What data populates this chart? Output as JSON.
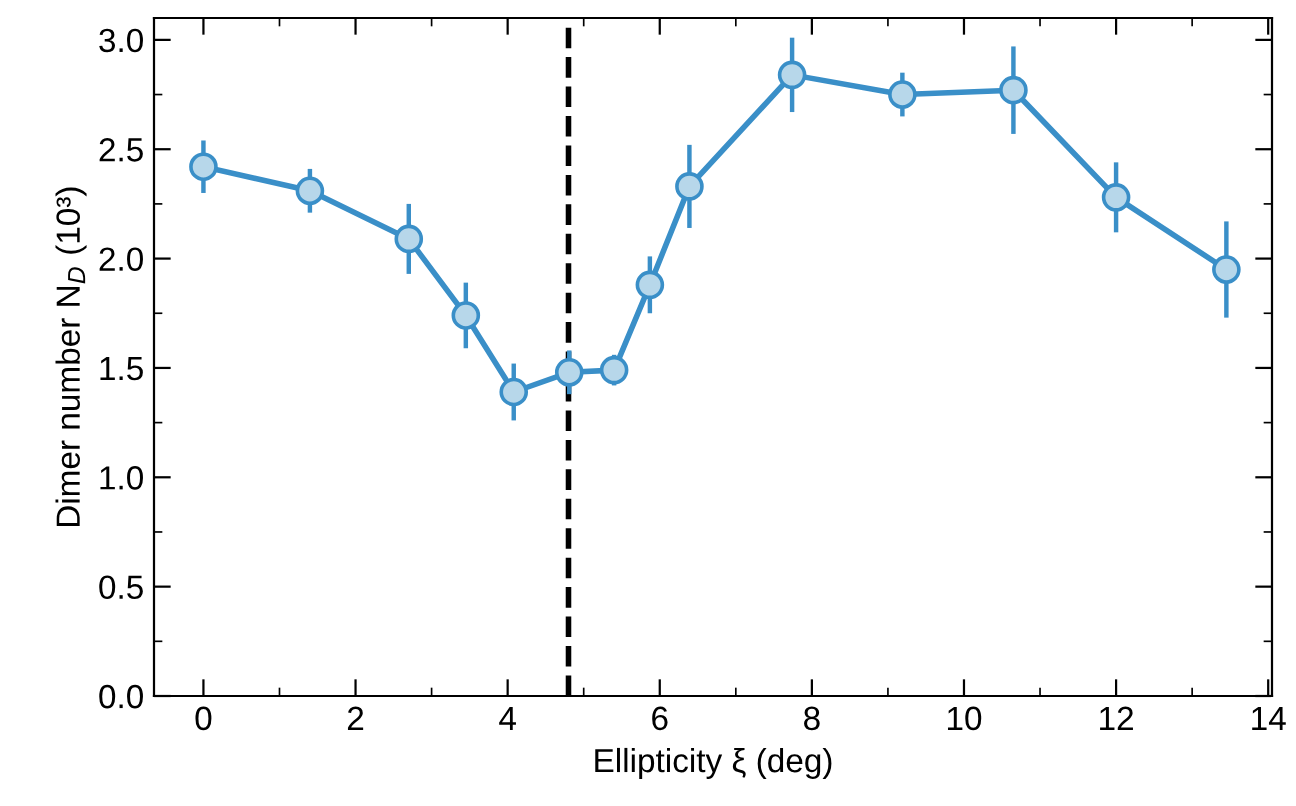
{
  "chart_data": {
    "type": "line",
    "xlabel": "Ellipticity ξ (deg)",
    "ylabel": "Dimer number N$_{D}$ (10³)",
    "x": [
      0,
      1.4,
      2.7,
      3.45,
      4.08,
      4.81,
      5.4,
      5.87,
      6.39,
      7.74,
      9.19,
      10.65,
      12.0,
      13.45
    ],
    "series": [
      {
        "color": "#3a8fc8",
        "values": [
          2.42,
          2.31,
          2.09,
          1.74,
          1.39,
          1.48,
          1.49,
          1.88,
          2.33,
          2.84,
          2.75,
          2.77,
          2.28,
          1.95
        ],
        "errors": [
          0.12,
          0.1,
          0.16,
          0.15,
          0.13,
          0.1,
          0.07,
          0.13,
          0.19,
          0.17,
          0.1,
          0.2,
          0.16,
          0.22
        ]
      }
    ],
    "marker": "circle",
    "line_style": "solid",
    "grid": false,
    "legend": false,
    "xlim": [
      -0.65,
      14.05
    ],
    "ylim": [
      0,
      3.1
    ],
    "xticks": [
      0,
      2,
      4,
      6,
      8,
      10,
      12,
      14
    ],
    "yticks": [
      {
        "value": 0,
        "label": "0.0"
      },
      0.5,
      {
        "value": 1,
        "label": "1.0"
      },
      1.5,
      {
        "value": 2,
        "label": "2.0"
      },
      2.5,
      {
        "value": 3,
        "label": "3.0"
      }
    ],
    "ref_lines": [
      {
        "axis": "x",
        "value": 4.8,
        "label": null,
        "color": "#000000",
        "line_style": "dashed"
      }
    ]
  }
}
